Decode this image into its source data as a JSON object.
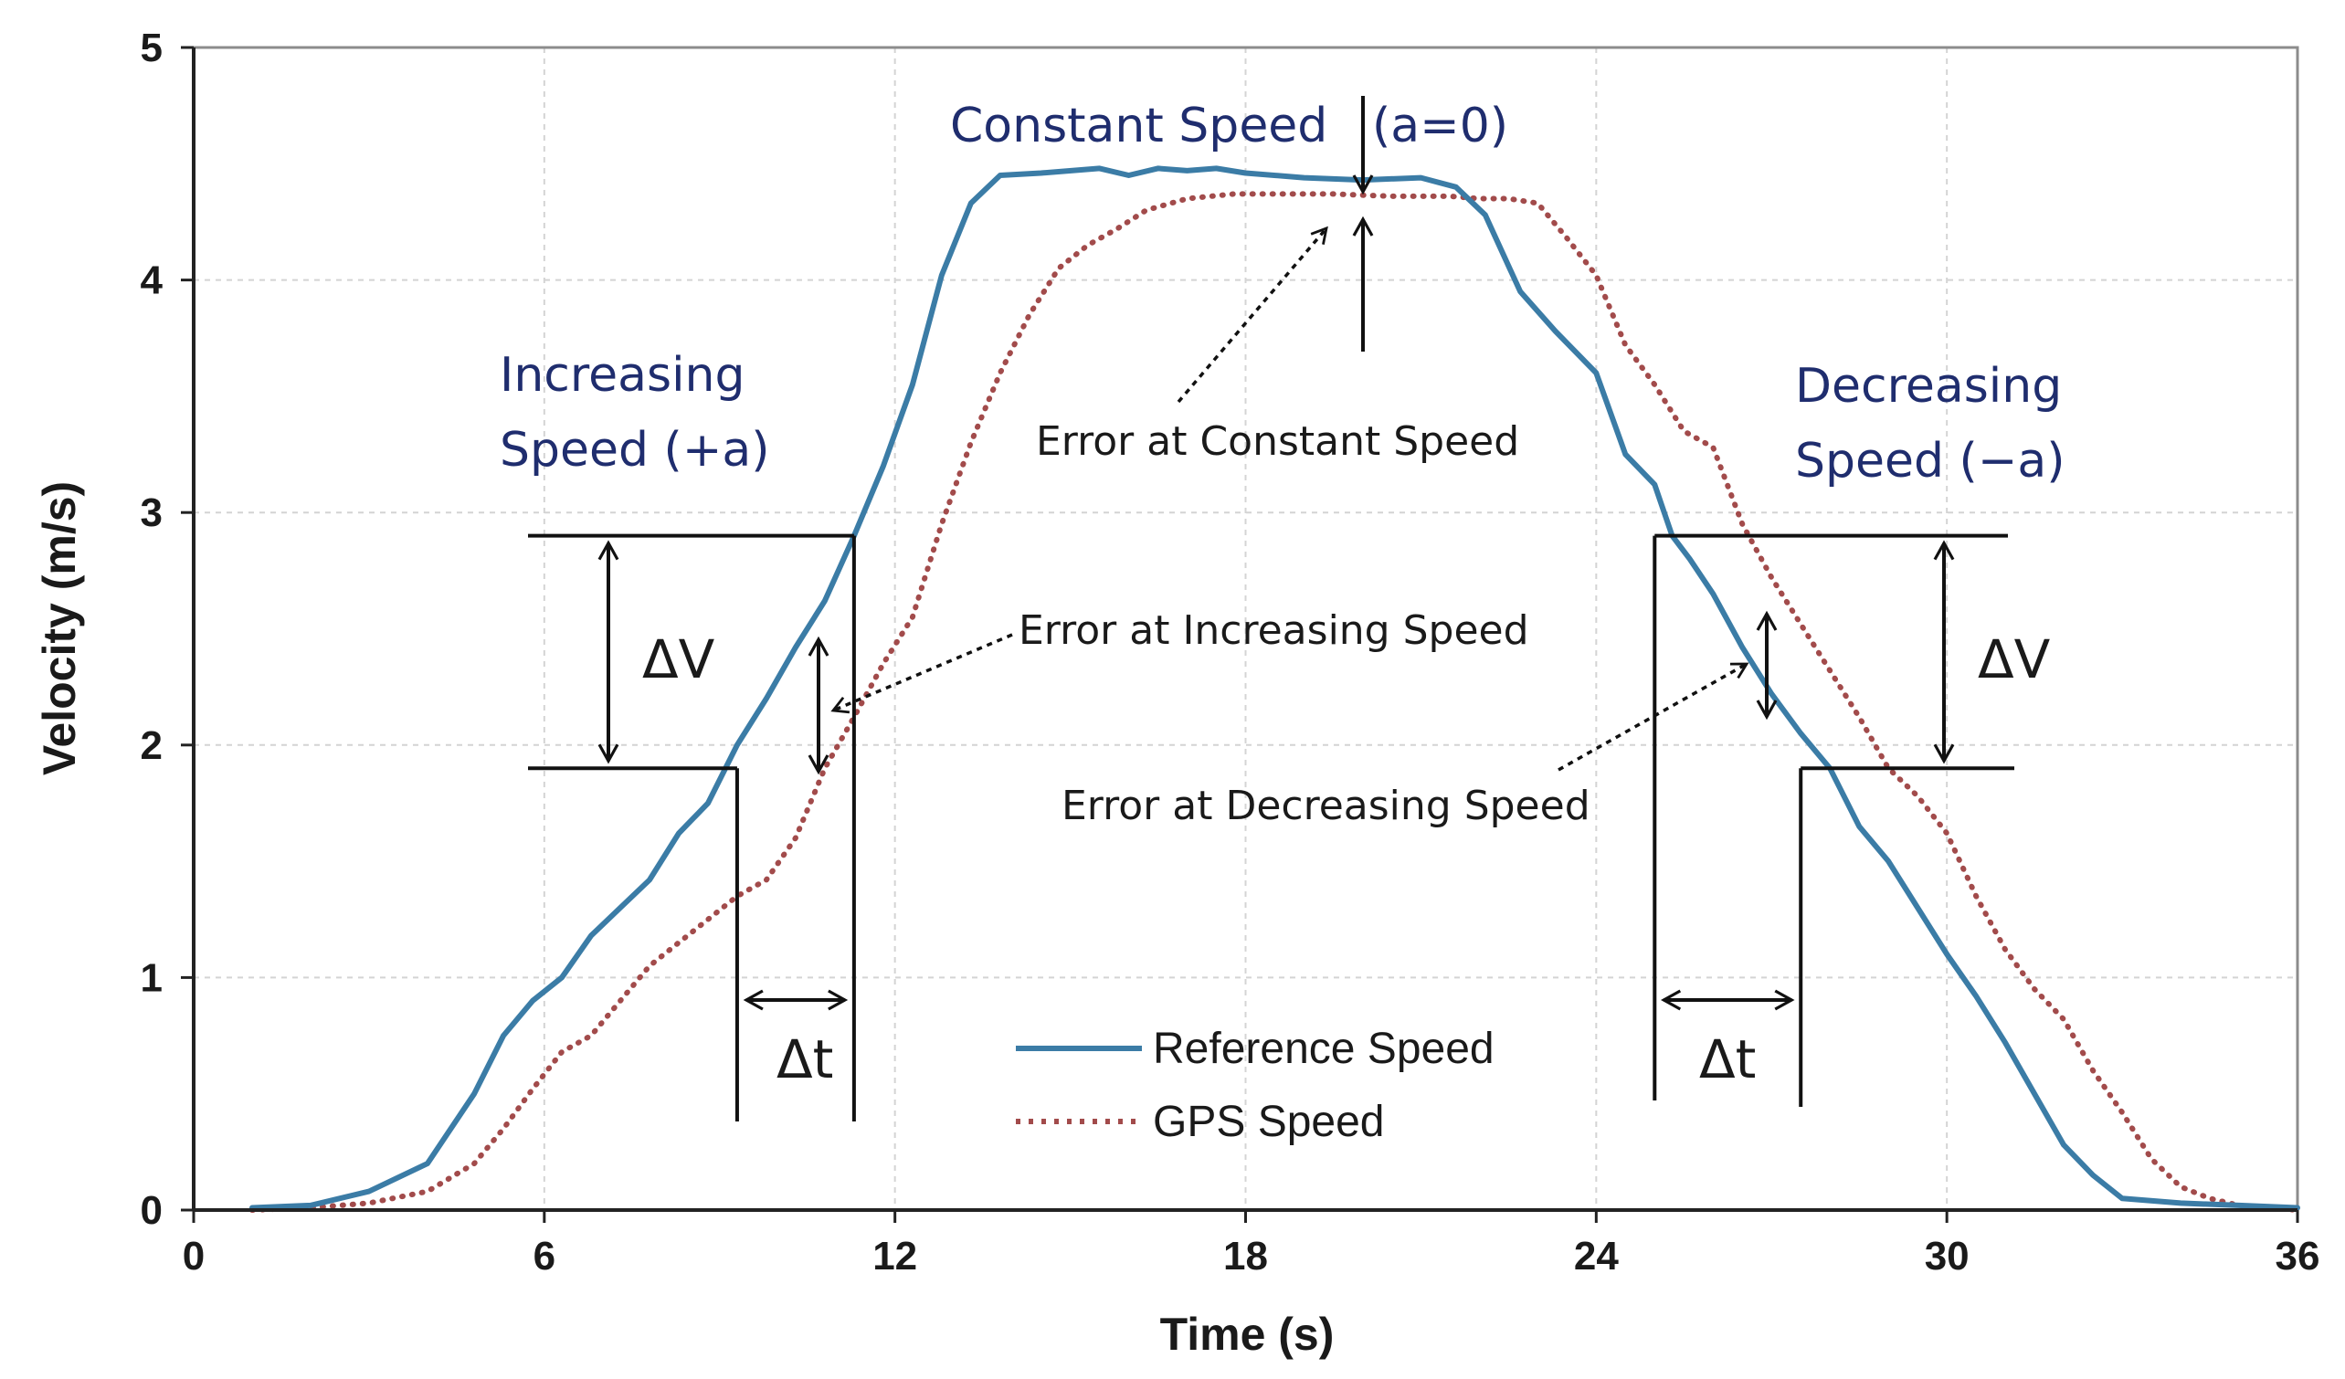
{
  "chart_data": {
    "type": "line",
    "title": "",
    "xlabel": "Time (s)",
    "ylabel": "Velocity (m/s)",
    "xlim": [
      0,
      36
    ],
    "ylim": [
      0,
      5
    ],
    "xticks": [
      0,
      6,
      12,
      18,
      24,
      30,
      36
    ],
    "yticks": [
      0,
      1,
      2,
      3,
      4,
      5
    ],
    "grid": true,
    "legend_position": "bottom-center",
    "series": [
      {
        "name": "Reference Speed",
        "color": "#3b7ca6",
        "style": "solid",
        "points": [
          [
            1.0,
            0.01
          ],
          [
            2.0,
            0.02
          ],
          [
            3.0,
            0.08
          ],
          [
            4.0,
            0.2
          ],
          [
            4.8,
            0.5
          ],
          [
            5.3,
            0.75
          ],
          [
            5.8,
            0.9
          ],
          [
            6.3,
            1.0
          ],
          [
            6.8,
            1.18
          ],
          [
            7.3,
            1.3
          ],
          [
            7.8,
            1.42
          ],
          [
            8.3,
            1.62
          ],
          [
            8.8,
            1.75
          ],
          [
            9.3,
            2.0
          ],
          [
            9.8,
            2.2
          ],
          [
            10.3,
            2.42
          ],
          [
            10.8,
            2.62
          ],
          [
            11.3,
            2.9
          ],
          [
            11.8,
            3.2
          ],
          [
            12.3,
            3.55
          ],
          [
            12.8,
            4.02
          ],
          [
            13.3,
            4.33
          ],
          [
            13.8,
            4.45
          ],
          [
            14.5,
            4.46
          ],
          [
            15.5,
            4.48
          ],
          [
            16.0,
            4.45
          ],
          [
            16.5,
            4.48
          ],
          [
            17.0,
            4.47
          ],
          [
            17.5,
            4.48
          ],
          [
            18.0,
            4.46
          ],
          [
            19.0,
            4.44
          ],
          [
            20.0,
            4.43
          ],
          [
            21.0,
            4.44
          ],
          [
            21.6,
            4.4
          ],
          [
            22.1,
            4.28
          ],
          [
            22.7,
            3.95
          ],
          [
            23.3,
            3.78
          ],
          [
            24.0,
            3.6
          ],
          [
            24.5,
            3.25
          ],
          [
            25.0,
            3.12
          ],
          [
            25.3,
            2.9
          ],
          [
            25.6,
            2.8
          ],
          [
            26.0,
            2.65
          ],
          [
            26.5,
            2.42
          ],
          [
            27.0,
            2.22
          ],
          [
            27.5,
            2.05
          ],
          [
            28.0,
            1.9
          ],
          [
            28.5,
            1.65
          ],
          [
            29.0,
            1.5
          ],
          [
            29.5,
            1.3
          ],
          [
            30.0,
            1.1
          ],
          [
            30.5,
            0.92
          ],
          [
            31.0,
            0.72
          ],
          [
            31.5,
            0.5
          ],
          [
            32.0,
            0.28
          ],
          [
            32.5,
            0.15
          ],
          [
            33.0,
            0.05
          ],
          [
            34.0,
            0.03
          ],
          [
            35.0,
            0.02
          ],
          [
            36.0,
            0.01
          ]
        ]
      },
      {
        "name": "GPS Speed",
        "color": "#a24b4b",
        "style": "dotted",
        "points": [
          [
            1.0,
            0.0
          ],
          [
            2.0,
            0.01
          ],
          [
            3.0,
            0.03
          ],
          [
            4.0,
            0.08
          ],
          [
            4.8,
            0.2
          ],
          [
            5.3,
            0.35
          ],
          [
            5.8,
            0.52
          ],
          [
            6.3,
            0.68
          ],
          [
            6.8,
            0.75
          ],
          [
            7.3,
            0.9
          ],
          [
            7.8,
            1.05
          ],
          [
            8.3,
            1.15
          ],
          [
            8.8,
            1.25
          ],
          [
            9.3,
            1.35
          ],
          [
            9.8,
            1.42
          ],
          [
            10.3,
            1.6
          ],
          [
            10.8,
            1.9
          ],
          [
            11.3,
            2.12
          ],
          [
            11.8,
            2.35
          ],
          [
            12.3,
            2.55
          ],
          [
            12.8,
            2.95
          ],
          [
            13.3,
            3.3
          ],
          [
            13.8,
            3.6
          ],
          [
            14.3,
            3.85
          ],
          [
            14.8,
            4.05
          ],
          [
            15.3,
            4.15
          ],
          [
            15.8,
            4.22
          ],
          [
            16.3,
            4.3
          ],
          [
            17.0,
            4.35
          ],
          [
            17.8,
            4.37
          ],
          [
            18.5,
            4.37
          ],
          [
            19.5,
            4.37
          ],
          [
            20.5,
            4.36
          ],
          [
            21.5,
            4.36
          ],
          [
            22.0,
            4.35
          ],
          [
            22.5,
            4.35
          ],
          [
            23.0,
            4.33
          ],
          [
            23.5,
            4.18
          ],
          [
            24.0,
            4.02
          ],
          [
            24.5,
            3.72
          ],
          [
            25.0,
            3.55
          ],
          [
            25.5,
            3.35
          ],
          [
            26.0,
            3.28
          ],
          [
            26.5,
            2.95
          ],
          [
            27.0,
            2.72
          ],
          [
            27.5,
            2.52
          ],
          [
            28.0,
            2.32
          ],
          [
            28.5,
            2.12
          ],
          [
            29.0,
            1.9
          ],
          [
            29.5,
            1.78
          ],
          [
            30.0,
            1.62
          ],
          [
            30.5,
            1.35
          ],
          [
            31.0,
            1.12
          ],
          [
            31.5,
            0.95
          ],
          [
            32.0,
            0.82
          ],
          [
            32.5,
            0.6
          ],
          [
            33.0,
            0.42
          ],
          [
            33.5,
            0.22
          ],
          [
            34.0,
            0.1
          ],
          [
            34.5,
            0.05
          ],
          [
            35.0,
            0.02
          ],
          [
            36.0,
            0.0
          ]
        ]
      }
    ],
    "annotations": {
      "increasing_label": [
        "Increasing",
        "Speed (+a)"
      ],
      "constant_label": "Constant Speed",
      "constant_label_suffix": "(a=0)",
      "decreasing_label": [
        "Decreasing",
        "Speed (−a)"
      ],
      "error_constant": "Error at Constant Speed",
      "error_increasing": "Error at Increasing Speed",
      "error_decreasing": "Error at Decreasing Speed",
      "delta_v": "ΔV",
      "delta_t": "Δt",
      "increasing_box": {
        "t_start": 9.3,
        "t_end": 11.3,
        "v_low": 1.9,
        "v_high": 2.9
      },
      "decreasing_box": {
        "t_start": 25.0,
        "t_end": 27.5,
        "v_low": 1.9,
        "v_high": 2.9
      }
    }
  }
}
